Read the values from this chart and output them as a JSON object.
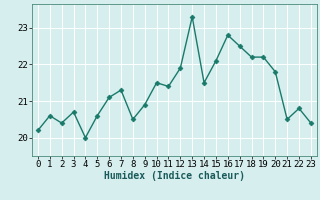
{
  "x": [
    0,
    1,
    2,
    3,
    4,
    5,
    6,
    7,
    8,
    9,
    10,
    11,
    12,
    13,
    14,
    15,
    16,
    17,
    18,
    19,
    20,
    21,
    22,
    23
  ],
  "y": [
    20.2,
    20.6,
    20.4,
    20.7,
    20.0,
    20.6,
    21.1,
    21.3,
    20.5,
    20.9,
    21.5,
    21.4,
    21.9,
    23.3,
    21.5,
    22.1,
    22.8,
    22.5,
    22.2,
    22.2,
    21.8,
    20.5,
    20.8,
    20.4
  ],
  "line_color": "#1a7a6a",
  "marker": "D",
  "marker_size": 2.5,
  "bg_color": "#d6eeee",
  "grid_color": "#ffffff",
  "xlabel": "Humidex (Indice chaleur)",
  "xlim": [
    -0.5,
    23.5
  ],
  "ylim": [
    19.5,
    23.65
  ],
  "yticks": [
    20,
    21,
    22,
    23
  ],
  "xticks": [
    0,
    1,
    2,
    3,
    4,
    5,
    6,
    7,
    8,
    9,
    10,
    11,
    12,
    13,
    14,
    15,
    16,
    17,
    18,
    19,
    20,
    21,
    22,
    23
  ],
  "xlabel_fontsize": 7,
  "tick_fontsize": 6.5,
  "line_width": 1.0,
  "spine_color": "#4a8a7a"
}
